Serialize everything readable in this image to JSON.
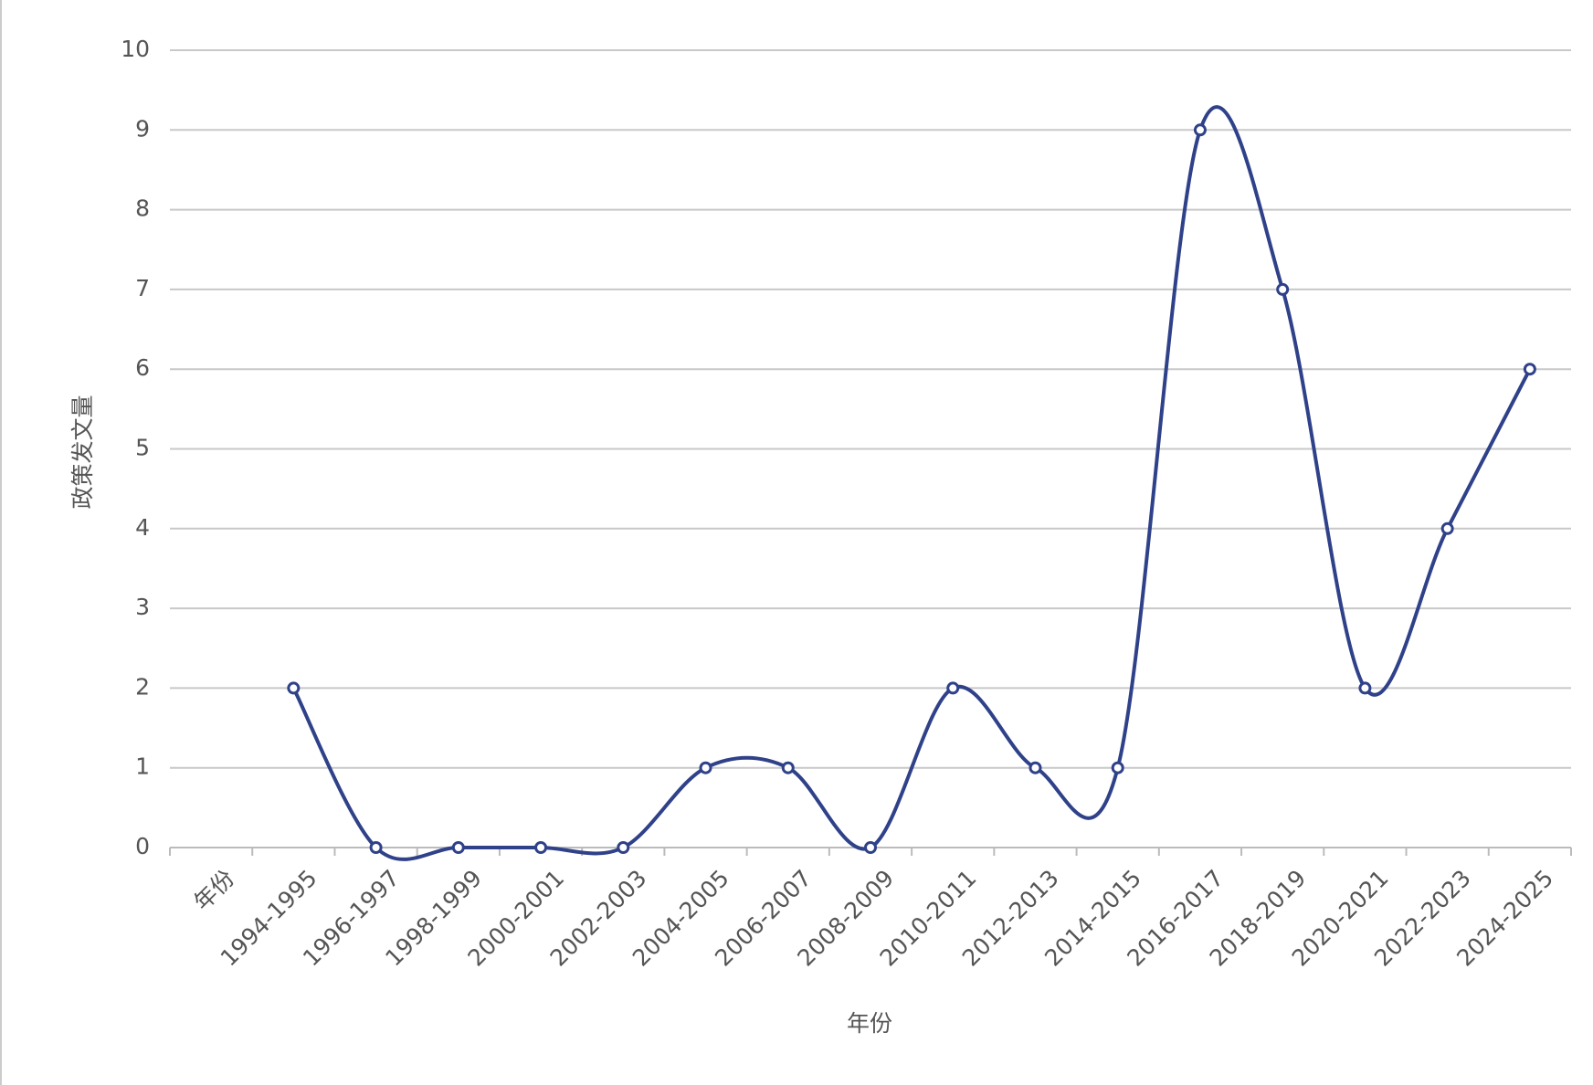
{
  "chart_data": {
    "type": "line",
    "y_label": "政策发文量",
    "x_label": "年份",
    "categories": [
      "年份",
      "1994-1995",
      "1996-1997",
      "1998-1999",
      "2000-2001",
      "2002-2003",
      "2004-2005",
      "2006-2007",
      "2008-2009",
      "2010-2011",
      "2012-2013",
      "2014-2015",
      "2016-2017",
      "2018-2019",
      "2020-2021",
      "2022-2023",
      "2024-2025"
    ],
    "series": [
      {
        "color": "#2f4189",
        "values": [
          null,
          2,
          0,
          0,
          0,
          0,
          1,
          1,
          0,
          2,
          1,
          1,
          9,
          7,
          2,
          4,
          6
        ]
      }
    ],
    "ylim": [
      0,
      10
    ],
    "yticks": [
      0,
      1,
      2,
      3,
      4,
      5,
      6,
      7,
      8,
      9,
      10
    ],
    "grid": true,
    "smooth": true
  }
}
